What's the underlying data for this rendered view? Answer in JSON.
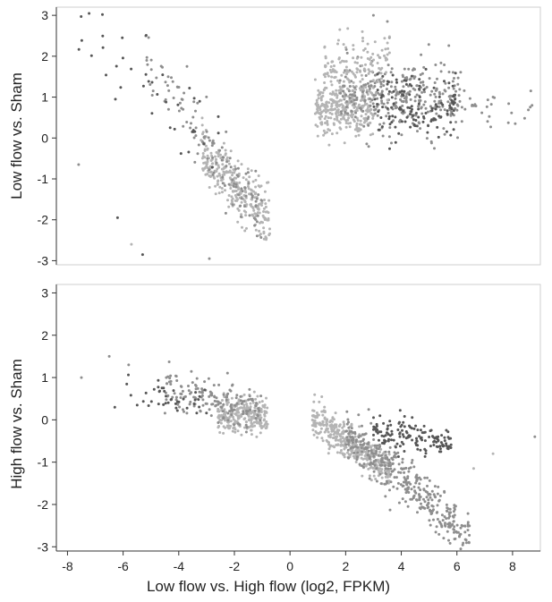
{
  "chart_data": [
    {
      "type": "scatter",
      "id": "top",
      "ylabel": "Low flow vs. Sham",
      "xlim": [
        -8.4,
        9.0
      ],
      "ylim": [
        -3.1,
        3.2
      ],
      "xticks": [],
      "yticks": [
        3,
        2,
        1,
        0,
        -1,
        -2,
        -3
      ],
      "grid": false,
      "colors": {
        "light": "#b4b4b4",
        "mid": "#8e8e8e",
        "dark": "#565656"
      },
      "clusters": [
        {
          "shade": "light",
          "n": 330,
          "x_range": [
            0.9,
            3.0
          ],
          "y_center": 0.75,
          "y_spread": 0.35
        },
        {
          "shade": "mid",
          "n": 320,
          "x_range": [
            1.8,
            6.2
          ],
          "y_center": 0.95,
          "y_spread": 0.45
        },
        {
          "shade": "dark",
          "n": 130,
          "x_range": [
            3.0,
            6.0
          ],
          "y_center": 0.8,
          "y_spread": 0.4
        },
        {
          "shade": "light",
          "n": 120,
          "x_range": [
            1.2,
            3.6
          ],
          "y_center": 1.7,
          "y_spread": 0.35
        },
        {
          "shade": "mid",
          "n": 30,
          "x_range": [
            5.5,
            8.8
          ],
          "y_center": 0.75,
          "y_spread": 0.2
        },
        {
          "shade": "light",
          "n": 300,
          "x_range": [
            -3.2,
            -0.7
          ],
          "trend": [
            -1.0,
            -1.85,
            -0.7
          ],
          "y_spread": 0.35
        },
        {
          "shade": "mid",
          "n": 120,
          "x_range": [
            -5.2,
            -1.0
          ],
          "trend": [
            -1.0,
            -1.8,
            -0.9
          ],
          "y_spread": 0.45
        },
        {
          "shade": "dark",
          "n": 40,
          "x_range": [
            -7.6,
            -2.5
          ],
          "trend": [
            -1.0,
            -1.3,
            -0.6
          ],
          "y_spread": 0.6
        }
      ],
      "points": [
        {
          "x": 3.0,
          "y": 3.0,
          "shade": "mid"
        },
        {
          "x": 3.5,
          "y": 2.85,
          "shade": "mid"
        },
        {
          "x": 2.6,
          "y": 2.6,
          "shade": "light"
        },
        {
          "x": -7.6,
          "y": -0.65,
          "shade": "mid"
        },
        {
          "x": -5.3,
          "y": -2.85,
          "shade": "dark"
        },
        {
          "x": -2.9,
          "y": -2.95,
          "shade": "mid"
        },
        {
          "x": -2.3,
          "y": 0.15,
          "shade": "mid"
        },
        {
          "x": -5.7,
          "y": -2.6,
          "shade": "light"
        },
        {
          "x": -6.2,
          "y": -1.95,
          "shade": "dark"
        },
        {
          "x": 8.7,
          "y": 0.8,
          "shade": "mid"
        }
      ]
    },
    {
      "type": "scatter",
      "id": "bottom",
      "xlabel": "Low flow vs. High flow (log2, FPKM)",
      "ylabel": "High flow vs. Sham",
      "xlim": [
        -8.4,
        9.0
      ],
      "ylim": [
        -3.1,
        3.2
      ],
      "xticks": [
        -8,
        -6,
        -4,
        -2,
        0,
        2,
        4,
        6,
        8
      ],
      "yticks": [
        3,
        2,
        1,
        0,
        -1,
        -2,
        -3
      ],
      "grid": false,
      "colors": {
        "light": "#b4b4b4",
        "mid": "#8e8e8e",
        "dark": "#565656"
      },
      "clusters": [
        {
          "shade": "light",
          "n": 420,
          "x_range": [
            0.8,
            3.6
          ],
          "trend": [
            1.0,
            -0.05,
            -0.45
          ],
          "y_spread": 0.2
        },
        {
          "shade": "mid",
          "n": 380,
          "x_range": [
            2.0,
            6.5
          ],
          "trend": [
            2.0,
            -0.3,
            -0.55
          ],
          "y_spread": 0.28
        },
        {
          "shade": "dark",
          "n": 150,
          "x_range": [
            3.0,
            5.8
          ],
          "trend": [
            3.0,
            -0.25,
            -0.1
          ],
          "y_spread": 0.18
        },
        {
          "shade": "light",
          "n": 260,
          "x_range": [
            -2.6,
            -0.8
          ],
          "trend": [
            -1.0,
            0.15,
            0.05
          ],
          "y_spread": 0.2
        },
        {
          "shade": "mid",
          "n": 160,
          "x_range": [
            -4.5,
            -1.0
          ],
          "trend": [
            -1.0,
            0.2,
            -0.15
          ],
          "y_spread": 0.25
        },
        {
          "shade": "dark",
          "n": 40,
          "x_range": [
            -6.0,
            -3.0
          ],
          "trend": [
            -3.0,
            0.35,
            -0.15
          ],
          "y_spread": 0.15
        }
      ],
      "points": [
        {
          "x": -7.5,
          "y": 1.0,
          "shade": "mid"
        },
        {
          "x": -6.5,
          "y": 1.5,
          "shade": "mid"
        },
        {
          "x": -5.8,
          "y": 1.3,
          "shade": "mid"
        },
        {
          "x": -6.3,
          "y": 0.3,
          "shade": "dark"
        },
        {
          "x": 8.8,
          "y": -0.4,
          "shade": "mid"
        },
        {
          "x": 7.3,
          "y": -0.8,
          "shade": "light"
        },
        {
          "x": 6.6,
          "y": -1.15,
          "shade": "light"
        }
      ]
    }
  ]
}
